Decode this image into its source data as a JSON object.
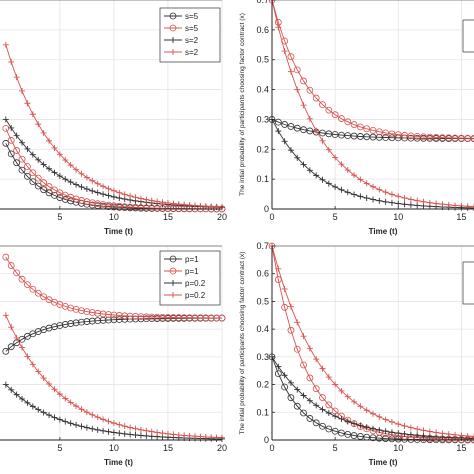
{
  "chart_data": [
    {
      "type": "line",
      "panel": "top-left",
      "xlabel": "Time (t)",
      "ylabel": "",
      "xlim": [
        -1,
        20
      ],
      "ylim": [
        0,
        0.7
      ],
      "x_ticks": [
        5,
        10,
        15,
        20
      ],
      "y_ticks": [],
      "grid": true,
      "legend_position": "top-right",
      "legend": [
        {
          "label": "s=5",
          "color": "#333333",
          "marker": "circle"
        },
        {
          "label": "s=5",
          "color": "#d9534f",
          "marker": "circle"
        },
        {
          "label": "s=2",
          "color": "#333333",
          "marker": "plus"
        },
        {
          "label": "s=2",
          "color": "#d9534f",
          "marker": "plus"
        }
      ],
      "series": [
        {
          "label": "s=5",
          "color": "#333333",
          "marker": "circle",
          "y0": 0.22,
          "y_end": 0.0,
          "rate": 0.35
        },
        {
          "label": "s=5",
          "color": "#d9534f",
          "marker": "circle",
          "y0": 0.27,
          "y_end": 0.0,
          "rate": 0.32
        },
        {
          "label": "s=2",
          "color": "#333333",
          "marker": "plus",
          "y0": 0.3,
          "y_end": 0.0,
          "rate": 0.2
        },
        {
          "label": "s=2",
          "color": "#d9534f",
          "marker": "plus",
          "y0": 0.55,
          "y_end": 0.0,
          "rate": 0.22
        }
      ]
    },
    {
      "type": "line",
      "panel": "top-right",
      "xlabel": "Time (t)",
      "ylabel": "The intial probability of participants choosing factor contract (x)",
      "xlim": [
        0,
        16
      ],
      "ylim": [
        0,
        0.7
      ],
      "x_ticks": [
        0,
        5,
        10,
        15
      ],
      "y_ticks": [
        0,
        0.1,
        0.2,
        0.3,
        0.4,
        0.5,
        0.6,
        0.7
      ],
      "grid": true,
      "legend_position": "top-right",
      "legend": [],
      "series": [
        {
          "color": "#333333",
          "marker": "circle",
          "y0": 0.3,
          "y_end": 0.235,
          "rate": 0.3
        },
        {
          "color": "#d9534f",
          "marker": "circle",
          "y0": 0.7,
          "y_end": 0.235,
          "rate": 0.35
        },
        {
          "color": "#333333",
          "marker": "plus",
          "y0": 0.3,
          "y_end": 0.0,
          "rate": 0.28
        },
        {
          "color": "#d9534f",
          "marker": "plus",
          "y0": 0.7,
          "y_end": 0.0,
          "rate": 0.28
        }
      ]
    },
    {
      "type": "line",
      "panel": "bottom-left",
      "xlabel": "Time (t)",
      "ylabel": "",
      "xlim": [
        -1,
        20
      ],
      "ylim": [
        0,
        0.7
      ],
      "x_ticks": [
        5,
        10,
        15,
        20
      ],
      "y_ticks": [],
      "grid": true,
      "legend_position": "top-right",
      "legend": [
        {
          "label": "p=1",
          "color": "#333333",
          "marker": "circle"
        },
        {
          "label": "p=1",
          "color": "#d9534f",
          "marker": "circle"
        },
        {
          "label": "p=0.2",
          "color": "#333333",
          "marker": "plus"
        },
        {
          "label": "p=0.2",
          "color": "#d9534f",
          "marker": "plus"
        }
      ],
      "series": [
        {
          "label": "p=1",
          "color": "#333333",
          "marker": "circle",
          "y0": 0.32,
          "y_end": 0.44,
          "rate": 0.3
        },
        {
          "label": "p=1",
          "color": "#d9534f",
          "marker": "circle",
          "y0": 0.66,
          "y_end": 0.44,
          "rate": 0.3
        },
        {
          "label": "p=0.2",
          "color": "#333333",
          "marker": "plus",
          "y0": 0.2,
          "y_end": 0.0,
          "rate": 0.2
        },
        {
          "label": "p=0.2",
          "color": "#d9534f",
          "marker": "plus",
          "y0": 0.45,
          "y_end": 0.0,
          "rate": 0.2
        }
      ]
    },
    {
      "type": "line",
      "panel": "bottom-right",
      "xlabel": "Time (t)",
      "ylabel": "The intial probability of participants choosing factor contract (x)",
      "xlim": [
        0,
        16
      ],
      "ylim": [
        0,
        0.7
      ],
      "x_ticks": [
        0,
        5,
        10,
        15
      ],
      "y_ticks": [
        0,
        0.1,
        0.2,
        0.3,
        0.4,
        0.5,
        0.6,
        0.7
      ],
      "grid": true,
      "legend_position": "top-right",
      "legend": [],
      "series": [
        {
          "color": "#333333",
          "marker": "circle",
          "y0": 0.3,
          "y_end": 0.0,
          "rate": 0.45
        },
        {
          "color": "#d9534f",
          "marker": "circle",
          "y0": 0.7,
          "y_end": 0.0,
          "rate": 0.38
        },
        {
          "color": "#333333",
          "marker": "plus",
          "y0": 0.3,
          "y_end": 0.0,
          "rate": 0.25
        },
        {
          "color": "#d9534f",
          "marker": "plus",
          "y0": 0.7,
          "y_end": 0.0,
          "rate": 0.25
        }
      ]
    }
  ]
}
